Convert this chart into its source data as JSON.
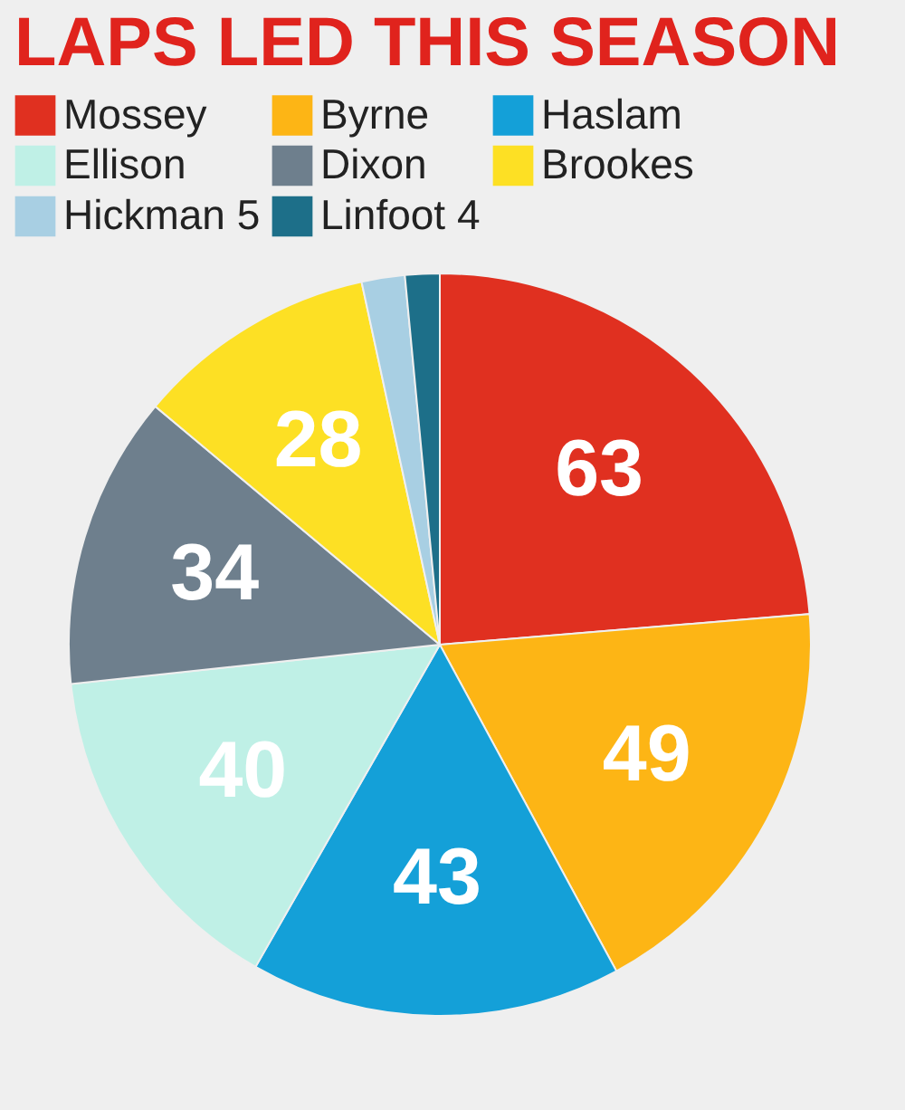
{
  "chart_data": {
    "type": "pie",
    "title": "LAPS LED THIS SEASON",
    "categories": [
      "Mossey",
      "Byrne",
      "Haslam",
      "Ellison",
      "Dixon",
      "Brookes",
      "Hickman 5",
      "Linfoot 4"
    ],
    "values": [
      63,
      49,
      43,
      40,
      34,
      28,
      5,
      4
    ],
    "value_labels": [
      "63",
      "49",
      "43",
      "40",
      "34",
      "28",
      null,
      null
    ],
    "colors": [
      "#e03020",
      "#fdb515",
      "#14a0d8",
      "#bff0e6",
      "#6e7f8d",
      "#fde024",
      "#a8cfe3",
      "#1d6f89"
    ],
    "legend": "top"
  }
}
